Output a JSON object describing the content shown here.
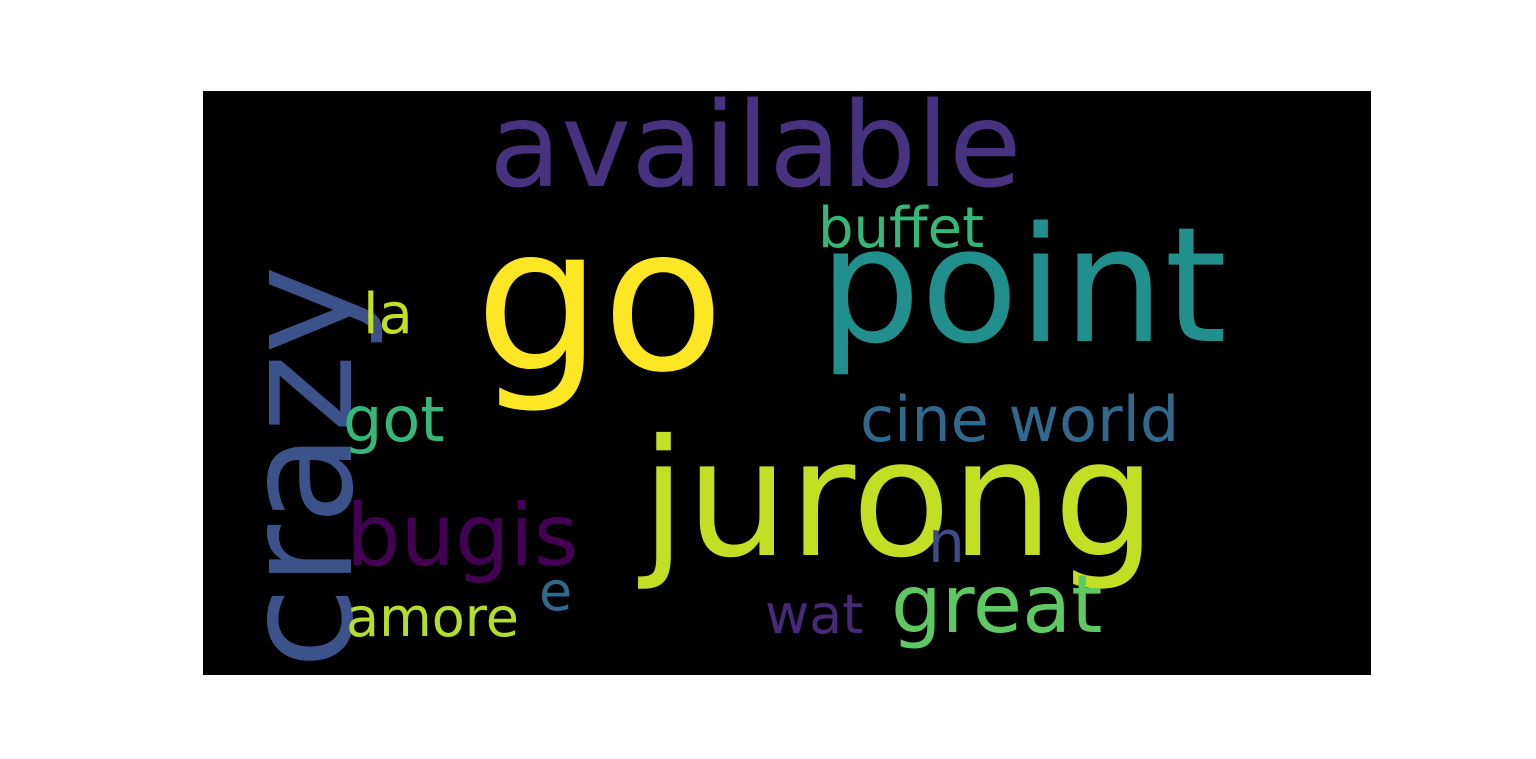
{
  "wordcloud": {
    "background": "#000000",
    "words": [
      {
        "key": "go",
        "text": "go",
        "color": "#fde725"
      },
      {
        "key": "jurong",
        "text": "jurong",
        "color": "#c2df23"
      },
      {
        "key": "point",
        "text": "point",
        "color": "#21908d"
      },
      {
        "key": "available",
        "text": "available",
        "color": "#46327e"
      },
      {
        "key": "crazy",
        "text": "crazy",
        "color": "#3b528b"
      },
      {
        "key": "cine_world",
        "text": "cine world",
        "color": "#31688e"
      },
      {
        "key": "bugis",
        "text": "bugis",
        "color": "#440154"
      },
      {
        "key": "buffet",
        "text": "buffet",
        "color": "#35b779"
      },
      {
        "key": "got",
        "text": "got",
        "color": "#35b779"
      },
      {
        "key": "la",
        "text": "la",
        "color": "#c2df23"
      },
      {
        "key": "n",
        "text": "n",
        "color": "#3e4a89"
      },
      {
        "key": "amore",
        "text": "amore",
        "color": "#b5de2b"
      },
      {
        "key": "e",
        "text": "e",
        "color": "#31688e"
      },
      {
        "key": "wat",
        "text": "wat",
        "color": "#482878"
      },
      {
        "key": "great",
        "text": "great",
        "color": "#5ec962"
      }
    ]
  }
}
